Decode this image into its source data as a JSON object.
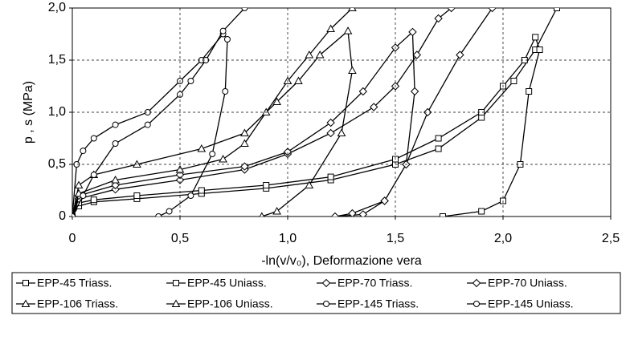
{
  "chart_data": {
    "type": "line",
    "xlabel": "-ln(v/v₀), Deformazione vera",
    "ylabel": "p , s (MPa)",
    "xlim": [
      0,
      2.5
    ],
    "ylim": [
      0,
      2.0
    ],
    "xticks": [
      0,
      {
        "value": 0.5,
        "label": "0,5"
      },
      {
        "value": 1.0,
        "label": "1,0"
      },
      {
        "value": 1.5,
        "label": "1,5"
      },
      {
        "value": 2.0,
        "label": "2,0"
      },
      {
        "value": 2.5,
        "label": "2,5"
      }
    ],
    "yticks": [
      0,
      {
        "value": 0.5,
        "label": "0,5"
      },
      {
        "value": 1.0,
        "label": "1,0"
      },
      {
        "value": 1.5,
        "label": "1,5"
      },
      {
        "value": 2.0,
        "label": "2,0"
      }
    ],
    "grid": true,
    "series": [
      {
        "name": "EPP-45 Triass.",
        "color": "#000000",
        "marker": "square",
        "x": [
          0,
          0.03,
          0.1,
          0.3,
          0.6,
          0.9,
          1.2,
          1.5,
          1.7,
          1.9,
          2.05,
          2.15,
          2.25
        ],
        "values": [
          0,
          0.1,
          0.14,
          0.17,
          0.22,
          0.27,
          0.35,
          0.5,
          0.65,
          0.95,
          1.3,
          1.6,
          2.0
        ]
      },
      {
        "name": "EPP-45 Uniass.",
        "color": "#000000",
        "marker": "square",
        "x": [
          0,
          0.03,
          0.1,
          0.3,
          0.6,
          0.9,
          1.2,
          1.5,
          1.7,
          1.9,
          2.0,
          2.1,
          2.15,
          2.17,
          2.12,
          2.08,
          2.0,
          1.9,
          1.72
        ],
        "values": [
          0,
          0.13,
          0.16,
          0.2,
          0.25,
          0.3,
          0.38,
          0.55,
          0.75,
          1.0,
          1.25,
          1.5,
          1.72,
          1.6,
          1.2,
          0.5,
          0.15,
          0.05,
          0
        ]
      },
      {
        "name": "EPP-70 Triass.",
        "color": "#000000",
        "marker": "diamond",
        "x": [
          0,
          0.03,
          0.2,
          0.5,
          0.8,
          1.0,
          1.2,
          1.4,
          1.5,
          1.6,
          1.7,
          1.76
        ],
        "values": [
          0,
          0.17,
          0.26,
          0.35,
          0.45,
          0.6,
          0.8,
          1.05,
          1.25,
          1.55,
          1.9,
          2.0
        ]
      },
      {
        "name": "EPP-70 Uniass.",
        "color": "#000000",
        "marker": "diamond",
        "x": [
          0,
          0.03,
          0.2,
          0.5,
          0.8,
          1.0,
          1.2,
          1.35,
          1.5,
          1.58,
          1.59,
          1.55,
          1.45,
          1.3,
          1.22,
          1.35,
          1.45,
          1.55,
          1.65,
          1.8,
          1.95
        ],
        "values": [
          0,
          0.2,
          0.3,
          0.4,
          0.48,
          0.62,
          0.9,
          1.2,
          1.62,
          1.77,
          1.2,
          0.5,
          0.15,
          0.03,
          0,
          0.02,
          0.15,
          0.5,
          1.0,
          1.55,
          2.0
        ]
      },
      {
        "name": "EPP-106 Triass.",
        "color": "#000000",
        "marker": "triangle",
        "x": [
          0,
          0.03,
          0.1,
          0.3,
          0.6,
          0.8,
          0.95,
          1.05,
          1.15,
          1.28,
          1.3,
          1.25,
          1.1,
          0.95,
          0.88
        ],
        "values": [
          0,
          0.3,
          0.4,
          0.5,
          0.65,
          0.8,
          1.1,
          1.3,
          1.55,
          1.78,
          1.4,
          0.8,
          0.3,
          0.05,
          0
        ]
      },
      {
        "name": "EPP-106 Uniass.",
        "color": "#000000",
        "marker": "triangle",
        "x": [
          0,
          0.03,
          0.2,
          0.5,
          0.7,
          0.8,
          0.9,
          1.0,
          1.1,
          1.2,
          1.3
        ],
        "values": [
          0,
          0.22,
          0.35,
          0.45,
          0.55,
          0.7,
          1.0,
          1.3,
          1.55,
          1.8,
          2.0
        ]
      },
      {
        "name": "EPP-145 Triass.",
        "color": "#000000",
        "marker": "circle",
        "x": [
          0,
          0.02,
          0.05,
          0.1,
          0.2,
          0.35,
          0.5,
          0.6,
          0.7,
          0.72,
          0.71,
          0.65,
          0.55,
          0.45,
          0.4
        ],
        "values": [
          0,
          0.5,
          0.63,
          0.75,
          0.88,
          1.0,
          1.3,
          1.5,
          1.75,
          1.7,
          1.2,
          0.6,
          0.2,
          0.05,
          0
        ]
      },
      {
        "name": "EPP-145 Uniass.",
        "color": "#000000",
        "marker": "circle",
        "x": [
          0,
          0.05,
          0.1,
          0.2,
          0.35,
          0.5,
          0.55,
          0.62,
          0.7,
          0.8
        ],
        "values": [
          0,
          0.2,
          0.4,
          0.7,
          0.88,
          1.17,
          1.3,
          1.5,
          1.78,
          2.0
        ]
      }
    ]
  }
}
